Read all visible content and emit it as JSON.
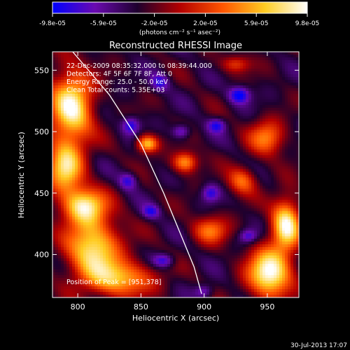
{
  "chart_data": {
    "type": "heatmap",
    "title": "Reconstructed RHESSI Image",
    "xlabel": "Heliocentric X (arcsec)",
    "ylabel": "Heliocentric Y (arcsec)",
    "xlim": [
      780,
      975
    ],
    "ylim": [
      365,
      565
    ],
    "x_ticks": [
      800,
      850,
      900,
      950
    ],
    "y_ticks": [
      400,
      450,
      500,
      550
    ],
    "colorbar": {
      "tick_labels": [
        "-9.8e-05",
        "-5.9e-05",
        "-2.0e-05",
        "2.0e-05",
        "5.9e-05",
        "9.8e-05"
      ],
      "range": [
        -9.8e-05,
        9.8e-05
      ],
      "unit_label": "(photons cm⁻² s⁻¹ asec⁻²)",
      "colors": [
        "#0000ff",
        "#6a0ab0",
        "#1e002e",
        "#b30000",
        "#ff5500",
        "#ffcc22",
        "#ffffff"
      ]
    },
    "annotations": [
      "22-Dec-2009 08:35:32.000 to 08:39:44.000",
      "Detectors: 4F 5F 6F 7F 8F, Att 0",
      "Energy Range: 25.0 - 50.0 keV",
      "Clean    Total counts: 5.35E+03"
    ],
    "peak_label": "Position of Peak = [951,378]",
    "peak": [
      951,
      378
    ],
    "limb_curve": [
      [
        796,
        565
      ],
      [
        825,
        530
      ],
      [
        850,
        490
      ],
      [
        868,
        450
      ],
      [
        880,
        420
      ],
      [
        892,
        390
      ],
      [
        898,
        368
      ]
    ],
    "hot_regions": [
      {
        "x": 795,
        "y": 520,
        "sx": 12,
        "sy": 22,
        "amp": 0.9
      },
      {
        "x": 790,
        "y": 470,
        "sx": 10,
        "sy": 15,
        "amp": 0.75
      },
      {
        "x": 805,
        "y": 440,
        "sx": 12,
        "sy": 10,
        "amp": 0.8
      },
      {
        "x": 812,
        "y": 405,
        "sx": 15,
        "sy": 18,
        "amp": 0.85
      },
      {
        "x": 835,
        "y": 380,
        "sx": 18,
        "sy": 10,
        "amp": 0.65
      },
      {
        "x": 855,
        "y": 490,
        "sx": 6,
        "sy": 5,
        "amp": 0.75
      },
      {
        "x": 885,
        "y": 475,
        "sx": 7,
        "sy": 6,
        "amp": 0.65
      },
      {
        "x": 950,
        "y": 495,
        "sx": 10,
        "sy": 10,
        "amp": 0.55
      },
      {
        "x": 952,
        "y": 385,
        "sx": 12,
        "sy": 14,
        "amp": 1.0
      },
      {
        "x": 965,
        "y": 425,
        "sx": 8,
        "sy": 15,
        "amp": 0.9
      },
      {
        "x": 930,
        "y": 460,
        "sx": 8,
        "sy": 8,
        "amp": 0.5
      },
      {
        "x": 905,
        "y": 420,
        "sx": 10,
        "sy": 8,
        "amp": 0.5
      },
      {
        "x": 925,
        "y": 555,
        "sx": 8,
        "sy": 5,
        "amp": 0.4
      }
    ],
    "cold_regions": [
      {
        "x": 865,
        "y": 540,
        "sx": 5,
        "sy": 5,
        "amp": 0.7
      },
      {
        "x": 842,
        "y": 505,
        "sx": 5,
        "sy": 5,
        "amp": 0.8
      },
      {
        "x": 882,
        "y": 500,
        "sx": 5,
        "sy": 4,
        "amp": 0.7
      },
      {
        "x": 928,
        "y": 530,
        "sx": 6,
        "sy": 5,
        "amp": 0.95
      },
      {
        "x": 910,
        "y": 505,
        "sx": 5,
        "sy": 4,
        "amp": 0.7
      },
      {
        "x": 905,
        "y": 450,
        "sx": 5,
        "sy": 5,
        "amp": 0.7
      },
      {
        "x": 840,
        "y": 460,
        "sx": 5,
        "sy": 5,
        "amp": 0.7
      },
      {
        "x": 858,
        "y": 435,
        "sx": 5,
        "sy": 4,
        "amp": 0.65
      },
      {
        "x": 868,
        "y": 395,
        "sx": 6,
        "sy": 4,
        "amp": 0.75
      },
      {
        "x": 935,
        "y": 415,
        "sx": 5,
        "sy": 4,
        "amp": 0.65
      },
      {
        "x": 900,
        "y": 370,
        "sx": 5,
        "sy": 4,
        "amp": 0.6
      }
    ]
  },
  "footer_timestamp": "30-Jul-2013 17:07"
}
